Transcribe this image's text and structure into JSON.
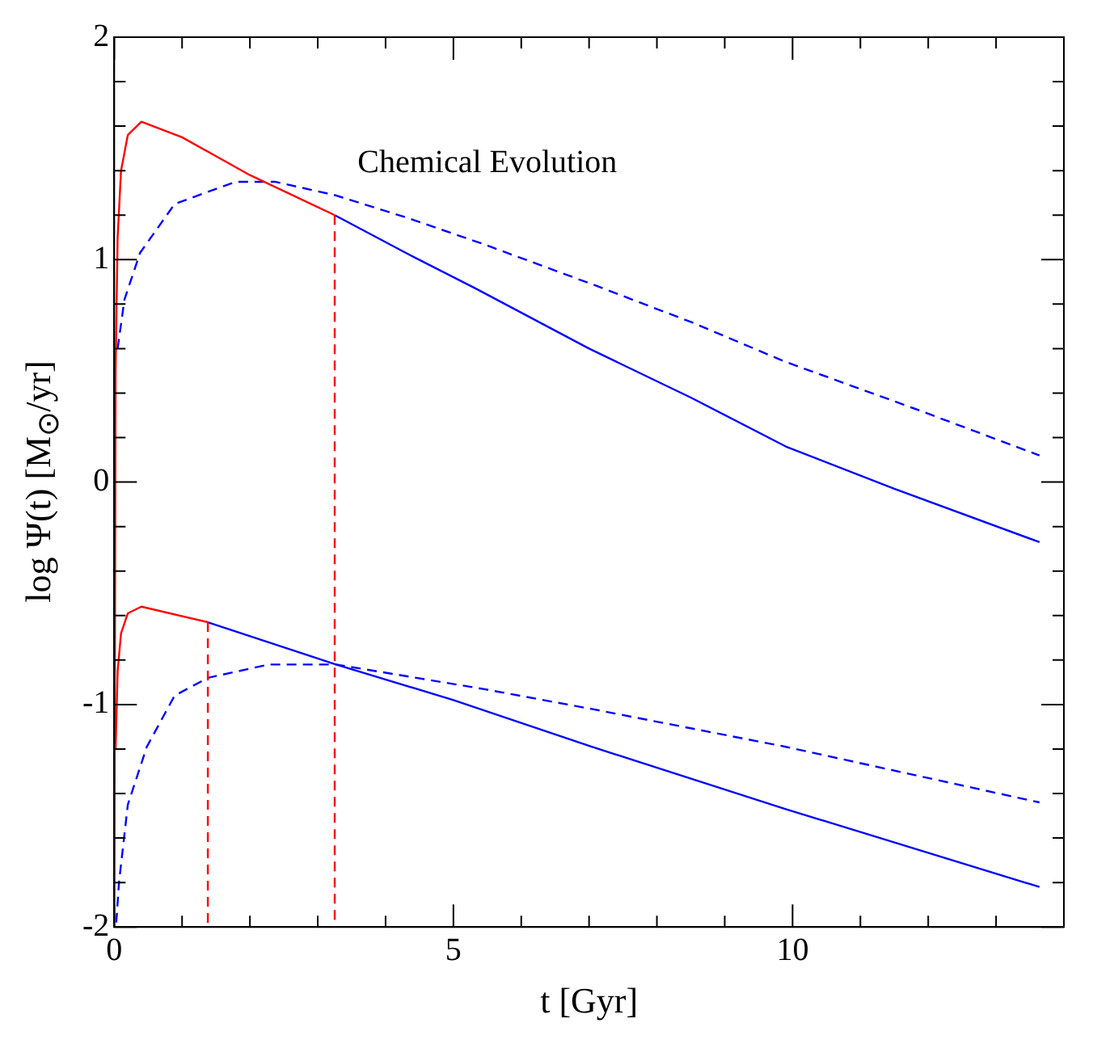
{
  "chart_data": {
    "type": "line",
    "title": "Chemical Evolution",
    "xlabel": "t [Gyr]",
    "ylabel": "log Ψ(t)  [M$_{⊙}$/yr]",
    "xlim": [
      0,
      14
    ],
    "ylim": [
      -2,
      2
    ],
    "xticks": [
      0,
      {
        "value": 1,
        "label": null
      },
      {
        "value": 2,
        "label": null
      },
      {
        "value": 3,
        "label": null
      },
      {
        "value": 4,
        "label": null
      },
      5,
      {
        "value": 6,
        "label": null
      },
      {
        "value": 7,
        "label": null
      },
      {
        "value": 8,
        "label": null
      },
      {
        "value": 9,
        "label": null
      },
      10,
      {
        "value": 11,
        "label": null
      },
      {
        "value": 12,
        "label": null
      },
      {
        "value": 13,
        "label": null
      },
      {
        "value": 14,
        "label": null
      }
    ],
    "yticks": [
      -2,
      {
        "value": -1.8,
        "label": null
      },
      {
        "value": -1.6,
        "label": null
      },
      {
        "value": -1.4,
        "label": null
      },
      {
        "value": -1.2,
        "label": null
      },
      -1,
      {
        "value": -0.8,
        "label": null
      },
      {
        "value": -0.6,
        "label": null
      },
      {
        "value": -0.4,
        "label": null
      },
      {
        "value": -0.2,
        "label": null
      },
      0,
      {
        "value": 0.2,
        "label": null
      },
      {
        "value": 0.4,
        "label": null
      },
      {
        "value": 0.6,
        "label": null
      },
      {
        "value": 0.8,
        "label": null
      },
      1,
      {
        "value": 1.2,
        "label": null
      },
      {
        "value": 1.4,
        "label": null
      },
      {
        "value": 1.6,
        "label": null
      },
      {
        "value": 1.8,
        "label": null
      },
      2
    ],
    "grid": false,
    "legend": false,
    "marker": "none",
    "series": [
      {
        "color": "#0000ff",
        "line_style": "solid",
        "x": [
          3.25,
          4.3,
          5.33,
          7,
          8.5,
          9.9,
          11.5,
          13.64
        ],
        "values": [
          1.2,
          1.03,
          0.87,
          0.6,
          0.38,
          0.16,
          -0.03,
          -0.27
        ]
      },
      {
        "color": "#0000ff",
        "line_style": "dashed",
        "x": [
          0.05,
          0.15,
          0.38,
          0.89,
          1.79,
          2.37,
          3.25,
          4.3,
          5.44,
          7.04,
          8.5,
          9.9,
          11.8,
          13.64
        ],
        "values": [
          0.6,
          0.82,
          1.03,
          1.25,
          1.35,
          1.35,
          1.29,
          1.19,
          1.07,
          0.89,
          0.72,
          0.54,
          0.33,
          0.12
        ]
      },
      {
        "color": "#0000ff",
        "line_style": "solid",
        "x": [
          1.38,
          3.27,
          5,
          7.04,
          9.9,
          13.64
        ],
        "values": [
          -0.63,
          -0.82,
          -0.98,
          -1.19,
          -1.47,
          -1.82
        ]
      },
      {
        "color": "#0000ff",
        "line_style": "dashed",
        "x": [
          0.03,
          0.07,
          0.2,
          0.48,
          0.89,
          1.38,
          2.28,
          3.27,
          5.44,
          7.04,
          9.9,
          13.64
        ],
        "values": [
          -1.98,
          -1.8,
          -1.45,
          -1.19,
          -0.96,
          -0.88,
          -0.82,
          -0.82,
          -0.93,
          -1.02,
          -1.19,
          -1.44
        ]
      },
      {
        "color": "#ff0000",
        "line_style": "solid",
        "x": [
          0,
          0.02,
          0.05,
          0.1,
          0.2,
          0.4,
          1,
          2,
          3.25
        ],
        "values": [
          -2,
          0.5,
          1.1,
          1.4,
          1.56,
          1.62,
          1.55,
          1.38,
          1.2
        ]
      },
      {
        "color": "#ff0000",
        "line_style": "dashed",
        "x": [
          3.25,
          3.25
        ],
        "values": [
          1.2,
          -2
        ]
      },
      {
        "color": "#ff0000",
        "line_style": "solid",
        "x": [
          0.02,
          0.05,
          0.1,
          0.2,
          0.4,
          1.38
        ],
        "values": [
          -1.2,
          -0.85,
          -0.68,
          -0.59,
          -0.56,
          -0.63
        ]
      },
      {
        "color": "#ff0000",
        "line_style": "dashed",
        "x": [
          1.38,
          1.38
        ],
        "values": [
          -0.63,
          -2
        ]
      }
    ]
  }
}
